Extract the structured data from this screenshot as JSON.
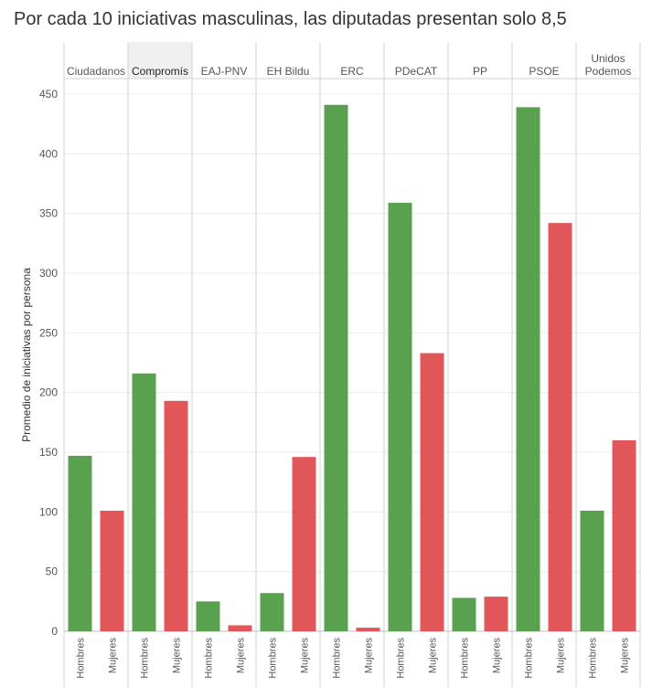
{
  "chart_data": {
    "type": "bar",
    "title": "Por cada 10 iniciativas masculinas, las diputadas presentan solo 8,5",
    "ylabel": "Promedio de iniciativas por persona",
    "ylim": [
      0,
      460
    ],
    "yticks": [
      0,
      50,
      100,
      150,
      200,
      250,
      300,
      350,
      400,
      450
    ],
    "grid": true,
    "subcategories": [
      "Hombres",
      "Mujeres"
    ],
    "colors": {
      "Hombres": "#59a14f",
      "Mujeres": "#e15759"
    },
    "groups": [
      {
        "name": [
          "Ciudadanos"
        ],
        "values": [
          147,
          101
        ]
      },
      {
        "name": [
          "Compromís"
        ],
        "values": [
          216,
          193
        ]
      },
      {
        "name": [
          "EAJ-PNV"
        ],
        "values": [
          25,
          5
        ]
      },
      {
        "name": [
          "EH Bildu"
        ],
        "values": [
          32,
          146
        ]
      },
      {
        "name": [
          "ERC"
        ],
        "values": [
          441,
          3
        ]
      },
      {
        "name": [
          "PDeCAT"
        ],
        "values": [
          359,
          233
        ]
      },
      {
        "name": [
          "PP"
        ],
        "values": [
          28,
          29
        ]
      },
      {
        "name": [
          "PSOE"
        ],
        "values": [
          439,
          342
        ]
      },
      {
        "name": [
          "Unidos",
          "Podemos"
        ],
        "values": [
          101,
          160
        ]
      }
    ],
    "highlighted_group": "Compromís"
  }
}
